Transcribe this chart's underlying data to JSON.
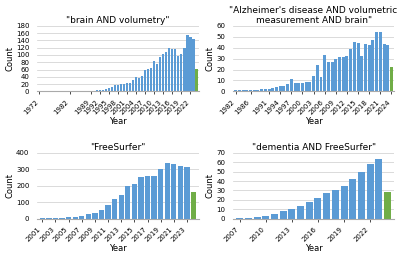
{
  "plot1": {
    "title": "\"brain AND volumetry\"",
    "years": [
      1972,
      1973,
      1974,
      1975,
      1976,
      1977,
      1978,
      1979,
      1980,
      1981,
      1982,
      1983,
      1984,
      1985,
      1986,
      1987,
      1988,
      1989,
      1990,
      1991,
      1992,
      1993,
      1994,
      1995,
      1996,
      1997,
      1998,
      1999,
      2000,
      2001,
      2002,
      2003,
      2004,
      2005,
      2006,
      2007,
      2008,
      2009,
      2010,
      2011,
      2012,
      2013,
      2014,
      2015,
      2016,
      2017,
      2018,
      2019,
      2020,
      2021,
      2022,
      2023,
      2024
    ],
    "counts": [
      1,
      0,
      0,
      0,
      0,
      1,
      0,
      1,
      1,
      1,
      1,
      1,
      2,
      1,
      1,
      2,
      2,
      2,
      2,
      3,
      3,
      4,
      7,
      9,
      13,
      17,
      18,
      20,
      21,
      22,
      22,
      30,
      40,
      38,
      42,
      58,
      62,
      64,
      83,
      75,
      95,
      103,
      109,
      120,
      117,
      115,
      98,
      103,
      120,
      155,
      150,
      145,
      62
    ],
    "xtick_years": [
      1972,
      1982,
      1989,
      1992,
      1995,
      1998,
      2001,
      2004,
      2007,
      2010,
      2013,
      2016,
      2019,
      2022
    ],
    "bar_color": "#5B9BD5",
    "last_bar_color": "#70AD47",
    "ylabel": "Count",
    "xlabel": "Year",
    "ylim": [
      0,
      180
    ],
    "yticks": [
      0,
      20,
      40,
      60,
      80,
      100,
      120,
      140,
      160,
      180
    ]
  },
  "plot2": {
    "title": "\"Alzheimer's disease AND volumetric\nmeasurement AND brain\"",
    "years": [
      1982,
      1983,
      1984,
      1985,
      1986,
      1987,
      1988,
      1989,
      1990,
      1991,
      1992,
      1993,
      1994,
      1995,
      1996,
      1997,
      1998,
      1999,
      2000,
      2001,
      2002,
      2003,
      2004,
      2005,
      2006,
      2007,
      2008,
      2009,
      2010,
      2011,
      2012,
      2013,
      2014,
      2015,
      2016,
      2017,
      2018,
      2019,
      2020,
      2021,
      2022,
      2023,
      2024
    ],
    "counts": [
      1,
      1,
      1,
      1,
      1,
      1,
      1,
      2,
      2,
      2,
      3,
      4,
      5,
      5,
      7,
      11,
      8,
      8,
      8,
      9,
      9,
      14,
      24,
      13,
      33,
      27,
      27,
      30,
      31,
      31,
      32,
      39,
      45,
      44,
      32,
      43,
      42,
      47,
      54,
      54,
      43,
      42,
      22
    ],
    "xtick_years": [
      1982,
      1986,
      1991,
      1994,
      1997,
      2000,
      2003,
      2006,
      2009,
      2012,
      2015,
      2018,
      2021,
      2024
    ],
    "bar_color": "#5B9BD5",
    "last_bar_color": "#70AD47",
    "ylabel": "Count",
    "xlabel": "Year",
    "ylim": [
      0,
      60
    ],
    "yticks": [
      0,
      10,
      20,
      30,
      40,
      50,
      60
    ]
  },
  "plot3": {
    "title": "\"FreeSurfer\"",
    "years": [
      2001,
      2002,
      2003,
      2004,
      2005,
      2006,
      2007,
      2008,
      2009,
      2010,
      2011,
      2012,
      2013,
      2014,
      2015,
      2016,
      2017,
      2018,
      2019,
      2020,
      2021,
      2022,
      2023,
      2024
    ],
    "counts": [
      1,
      2,
      3,
      5,
      8,
      10,
      15,
      25,
      35,
      55,
      80,
      120,
      145,
      200,
      210,
      250,
      260,
      260,
      300,
      340,
      330,
      320,
      315,
      160
    ],
    "xtick_years": [
      2001,
      2003,
      2005,
      2007,
      2009,
      2011,
      2013,
      2015,
      2017,
      2019,
      2021,
      2023
    ],
    "bar_color": "#5B9BD5",
    "last_bar_color": "#70AD47",
    "ylabel": "Count",
    "xlabel": "Year",
    "ylim": [
      0,
      400
    ],
    "yticks": [
      0,
      100,
      200,
      300,
      400
    ]
  },
  "plot4": {
    "title": "\"dementia AND FreeSurfer\"",
    "years": [
      2007,
      2008,
      2009,
      2010,
      2011,
      2012,
      2013,
      2014,
      2015,
      2016,
      2017,
      2018,
      2019,
      2020,
      2021,
      2022,
      2023,
      2024
    ],
    "counts": [
      1,
      1,
      2,
      3,
      5,
      8,
      10,
      13,
      18,
      22,
      27,
      30,
      35,
      42,
      50,
      58,
      63,
      28
    ],
    "xtick_years": [
      2007,
      2010,
      2013,
      2016,
      2019,
      2022
    ],
    "bar_color": "#5B9BD5",
    "last_bar_color": "#70AD47",
    "ylabel": "Count",
    "xlabel": "Year",
    "ylim": [
      0,
      70
    ],
    "yticks": [
      0,
      10,
      20,
      30,
      40,
      50,
      60,
      70
    ]
  },
  "background_color": "#FFFFFF",
  "title_fontsize": 6.5,
  "label_fontsize": 6,
  "tick_fontsize": 5
}
